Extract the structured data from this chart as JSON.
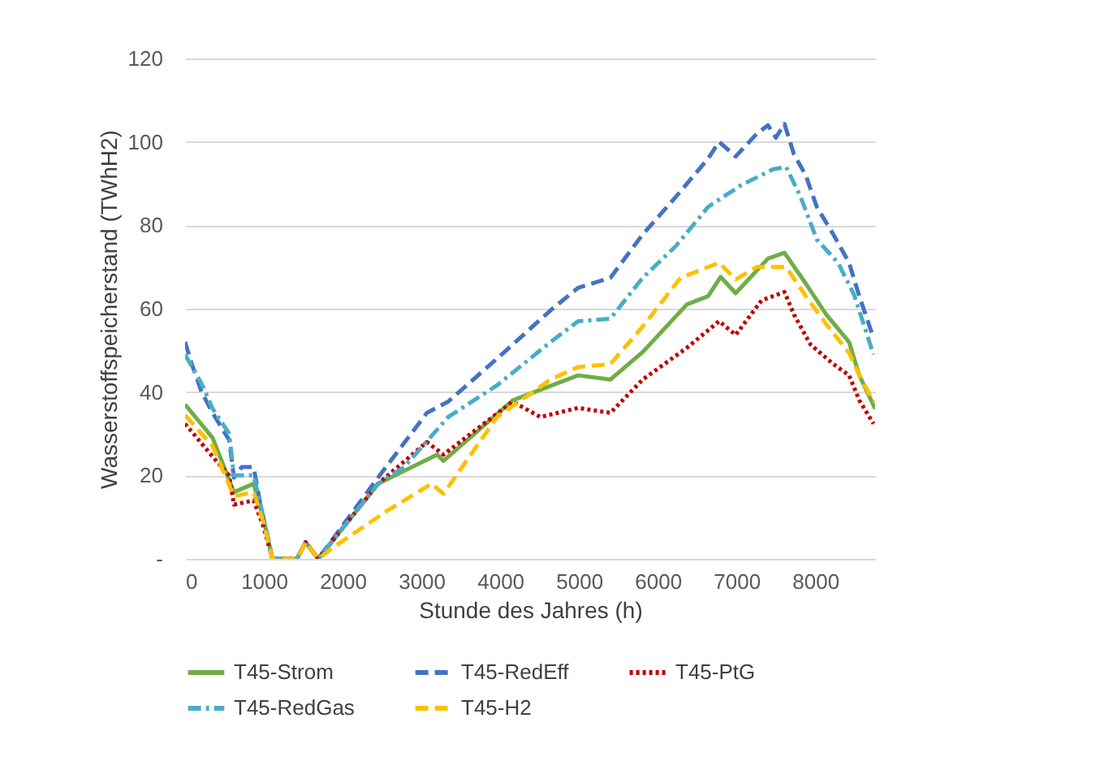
{
  "chart_data": {
    "type": "line",
    "xlabel": "Stunde des Jahres (h)",
    "ylabel": "Wasserstoffspeicherstand (TWhH2)",
    "xlim": [
      0,
      8760
    ],
    "xticks": [
      0,
      1000,
      2000,
      3000,
      4000,
      5000,
      6000,
      7000,
      8000
    ],
    "ylim": [
      0,
      120
    ],
    "yticks": [
      {
        "value": 0,
        "label": "-"
      },
      20,
      40,
      60,
      80,
      100,
      120
    ],
    "grid": "y",
    "legend": "bottom",
    "series": [
      {
        "name": "T45-Strom",
        "color": "#70ad47",
        "line_style": "solid",
        "x": [
          0,
          350,
          620,
          870,
          990,
          1110,
          1420,
          1530,
          1690,
          2450,
          3200,
          3280,
          4160,
          4990,
          5400,
          5810,
          6370,
          6640,
          6800,
          6990,
          7400,
          7610,
          7880,
          8140,
          8430,
          8560,
          8760
        ],
        "values": [
          37,
          29,
          16,
          18,
          10,
          0,
          0,
          4,
          0,
          18,
          25,
          23.5,
          38,
          44,
          43,
          49.6,
          61,
          63,
          67.6,
          63.7,
          72,
          73.4,
          66,
          58.6,
          52,
          44,
          36
        ]
      },
      {
        "name": "T45-RedEff",
        "color": "#4472c4",
        "line_style": "dashed",
        "x": [
          0,
          80,
          210,
          350,
          560,
          620,
          720,
          870,
          970,
          1110,
          1420,
          1530,
          1690,
          2450,
          3070,
          3340,
          3960,
          4640,
          4990,
          5400,
          5810,
          6230,
          6640,
          6780,
          6990,
          7260,
          7400,
          7500,
          7610,
          7730,
          7880,
          8020,
          8230,
          8430,
          8560,
          8740
        ],
        "values": [
          52,
          47,
          40,
          35,
          28.5,
          19.5,
          22,
          22,
          11.7,
          0,
          0,
          4,
          0,
          19.5,
          35,
          37.7,
          48,
          59.6,
          65,
          67.4,
          77.8,
          86.8,
          96,
          100,
          96.5,
          102,
          104,
          101,
          104.3,
          97,
          92,
          84.4,
          77.8,
          71,
          63,
          53
        ]
      },
      {
        "name": "T45-PtG",
        "color": "#c00000",
        "line_style": "dotted",
        "x": [
          0,
          350,
          560,
          620,
          870,
          990,
          1110,
          1420,
          1530,
          1690,
          2450,
          3070,
          3280,
          4160,
          4510,
          4990,
          5400,
          5810,
          6370,
          6780,
          6990,
          7320,
          7610,
          7730,
          7940,
          8230,
          8430,
          8560,
          8740
        ],
        "values": [
          32.4,
          24.5,
          20,
          13,
          14,
          8,
          0,
          0,
          4,
          0,
          18,
          28,
          25,
          37.7,
          34,
          36.2,
          35,
          43,
          50.6,
          57,
          53.7,
          62,
          64,
          58.6,
          51.4,
          46.7,
          44,
          38,
          32.4
        ]
      },
      {
        "name": "T45-RedGas",
        "color": "#4bacc6",
        "line_style": "dashdot",
        "x": [
          0,
          210,
          350,
          560,
          620,
          870,
          970,
          1110,
          1420,
          1530,
          1690,
          2450,
          2780,
          3340,
          3960,
          4640,
          4990,
          5400,
          5810,
          6230,
          6640,
          7050,
          7460,
          7630,
          7810,
          8020,
          8290,
          8490,
          8740
        ],
        "values": [
          49,
          42,
          36,
          30,
          20,
          20,
          12,
          0,
          0,
          4,
          0,
          18,
          22,
          34,
          41.6,
          52,
          57,
          57.6,
          67.4,
          75,
          84.4,
          89.5,
          93.4,
          94,
          87,
          76.6,
          71,
          63.5,
          49
        ]
      },
      {
        "name": "T45-H2",
        "color": "#ffc000",
        "line_style": "dashed",
        "x": [
          0,
          350,
          620,
          870,
          990,
          1110,
          1420,
          1530,
          1690,
          1900,
          2580,
          3130,
          3280,
          3960,
          4640,
          4990,
          5400,
          5810,
          6290,
          6780,
          6990,
          7260,
          7630,
          7880,
          8150,
          8430,
          8560,
          8740
        ],
        "values": [
          34.5,
          27,
          15,
          16,
          9,
          0,
          0,
          4,
          0,
          3,
          11.7,
          18,
          15.6,
          34,
          43,
          46,
          46.7,
          55.7,
          67.4,
          71,
          67,
          70,
          70,
          63,
          56,
          49.4,
          44,
          37.7
        ]
      }
    ]
  }
}
